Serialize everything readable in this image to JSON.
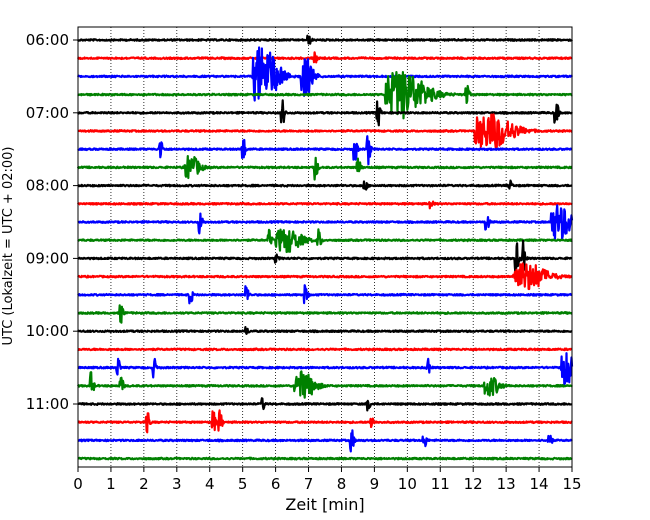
{
  "chart_data": {
    "type": "line",
    "title": "",
    "xlabel": "Zeit  [min]",
    "ylabel": "UTC (Lokalzeit = UTC + 02:00)",
    "xlim": [
      0,
      15
    ],
    "x_ticks": [
      0,
      1,
      2,
      3,
      4,
      5,
      6,
      7,
      8,
      9,
      10,
      11,
      12,
      13,
      14,
      15
    ],
    "y_tick_labels": [
      "06:00",
      "07:00",
      "08:00",
      "09:00",
      "10:00",
      "11:00"
    ],
    "trace_interval_min": 15,
    "start_time": "06:00",
    "grid": "vertical dotted",
    "legend": "none",
    "trace_colors": [
      "#000000",
      "#ff0000",
      "#0000ff",
      "#008000"
    ],
    "events": [
      {
        "trace": 0,
        "t": 7.0,
        "amp": 0.25
      },
      {
        "trace": 1,
        "t": 7.2,
        "amp": 0.45
      },
      {
        "trace": 2,
        "t": 5.6,
        "amp": 1.5,
        "dur": 1.0
      },
      {
        "trace": 2,
        "t": 6.9,
        "amp": 1.0,
        "dur": 0.5
      },
      {
        "trace": 3,
        "t": 9.8,
        "amp": 1.2,
        "dur": 1.6
      },
      {
        "trace": 3,
        "t": 11.8,
        "amp": 0.6
      },
      {
        "trace": 4,
        "t": 6.2,
        "amp": 0.7
      },
      {
        "trace": 4,
        "t": 9.1,
        "amp": 0.8
      },
      {
        "trace": 4,
        "t": 14.5,
        "amp": 0.8
      },
      {
        "trace": 5,
        "t": 12.5,
        "amp": 0.9,
        "dur": 1.5
      },
      {
        "trace": 6,
        "t": 2.5,
        "amp": 0.6
      },
      {
        "trace": 6,
        "t": 5.0,
        "amp": 0.7
      },
      {
        "trace": 6,
        "t": 8.4,
        "amp": 0.7
      },
      {
        "trace": 6,
        "t": 8.8,
        "amp": 0.8
      },
      {
        "trace": 7,
        "t": 3.4,
        "amp": 0.6,
        "dur": 0.6
      },
      {
        "trace": 7,
        "t": 7.2,
        "amp": 0.7
      },
      {
        "trace": 7,
        "t": 8.5,
        "amp": 0.6
      },
      {
        "trace": 8,
        "t": 8.7,
        "amp": 0.3
      },
      {
        "trace": 8,
        "t": 13.1,
        "amp": 0.3
      },
      {
        "trace": 9,
        "t": 10.7,
        "amp": 0.3
      },
      {
        "trace": 10,
        "t": 3.7,
        "amp": 0.6
      },
      {
        "trace": 10,
        "t": 12.4,
        "amp": 0.5
      },
      {
        "trace": 10,
        "t": 14.6,
        "amp": 0.9,
        "dur": 0.8
      },
      {
        "trace": 11,
        "t": 5.8,
        "amp": 0.5
      },
      {
        "trace": 11,
        "t": 6.3,
        "amp": 0.6,
        "dur": 1.0
      },
      {
        "trace": 11,
        "t": 7.3,
        "amp": 0.6
      },
      {
        "trace": 12,
        "t": 6.0,
        "amp": 0.2
      },
      {
        "trace": 12,
        "t": 13.3,
        "amp": 0.9
      },
      {
        "trace": 12,
        "t": 13.5,
        "amp": 0.9
      },
      {
        "trace": 13,
        "t": 13.6,
        "amp": 0.7,
        "dur": 1.3
      },
      {
        "trace": 14,
        "t": 3.4,
        "amp": 0.5
      },
      {
        "trace": 14,
        "t": 5.1,
        "amp": 0.6
      },
      {
        "trace": 14,
        "t": 6.9,
        "amp": 0.5
      },
      {
        "trace": 15,
        "t": 1.3,
        "amp": 0.5
      },
      {
        "trace": 16,
        "t": 5.1,
        "amp": 0.2
      },
      {
        "trace": 18,
        "t": 1.2,
        "amp": 0.5
      },
      {
        "trace": 18,
        "t": 2.3,
        "amp": 0.5
      },
      {
        "trace": 18,
        "t": 10.6,
        "amp": 0.5
      },
      {
        "trace": 18,
        "t": 14.8,
        "amp": 0.9,
        "dur": 0.5
      },
      {
        "trace": 19,
        "t": 0.4,
        "amp": 0.7
      },
      {
        "trace": 19,
        "t": 1.3,
        "amp": 0.5
      },
      {
        "trace": 19,
        "t": 6.8,
        "amp": 0.7,
        "dur": 0.8
      },
      {
        "trace": 19,
        "t": 12.5,
        "amp": 0.5,
        "dur": 0.6
      },
      {
        "trace": 20,
        "t": 5.6,
        "amp": 0.3
      },
      {
        "trace": 20,
        "t": 8.8,
        "amp": 0.3
      },
      {
        "trace": 21,
        "t": 2.1,
        "amp": 0.5
      },
      {
        "trace": 21,
        "t": 4.1,
        "amp": 0.6
      },
      {
        "trace": 21,
        "t": 4.3,
        "amp": 0.6
      },
      {
        "trace": 21,
        "t": 8.9,
        "amp": 0.4
      },
      {
        "trace": 22,
        "t": 8.3,
        "amp": 0.6
      },
      {
        "trace": 22,
        "t": 10.5,
        "amp": 0.5
      },
      {
        "trace": 22,
        "t": 14.3,
        "amp": 0.5
      }
    ]
  }
}
